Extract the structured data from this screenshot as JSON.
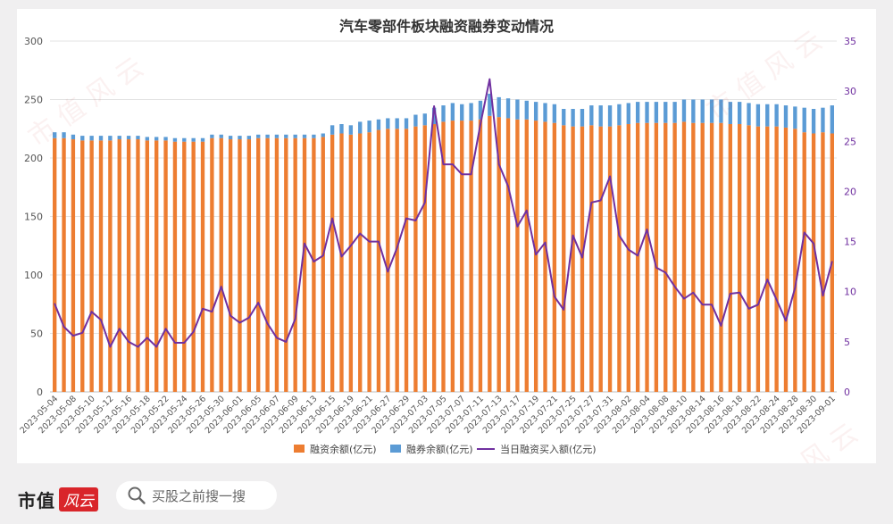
{
  "chart_data": {
    "type": "bar",
    "title": "汽车零部件板块融资融券变动情况",
    "categories": [
      "2023-05-04",
      "2023-05-05",
      "2023-05-08",
      "2023-05-09",
      "2023-05-10",
      "2023-05-11",
      "2023-05-12",
      "2023-05-15",
      "2023-05-16",
      "2023-05-17",
      "2023-05-18",
      "2023-05-19",
      "2023-05-22",
      "2023-05-23",
      "2023-05-24",
      "2023-05-25",
      "2023-05-26",
      "2023-05-29",
      "2023-05-30",
      "2023-05-31",
      "2023-06-01",
      "2023-06-02",
      "2023-06-05",
      "2023-06-06",
      "2023-06-07",
      "2023-06-08",
      "2023-06-09",
      "2023-06-12",
      "2023-06-13",
      "2023-06-14",
      "2023-06-15",
      "2023-06-16",
      "2023-06-19",
      "2023-06-20",
      "2023-06-21",
      "2023-06-26",
      "2023-06-27",
      "2023-06-28",
      "2023-06-29",
      "2023-06-30",
      "2023-07-03",
      "2023-07-04",
      "2023-07-05",
      "2023-07-06",
      "2023-07-07",
      "2023-07-10",
      "2023-07-11",
      "2023-07-12",
      "2023-07-13",
      "2023-07-14",
      "2023-07-17",
      "2023-07-18",
      "2023-07-19",
      "2023-07-20",
      "2023-07-21",
      "2023-07-24",
      "2023-07-25",
      "2023-07-26",
      "2023-07-27",
      "2023-07-28",
      "2023-07-31",
      "2023-08-01",
      "2023-08-02",
      "2023-08-03",
      "2023-08-04",
      "2023-08-07",
      "2023-08-08",
      "2023-08-09",
      "2023-08-10",
      "2023-08-11",
      "2023-08-14",
      "2023-08-15",
      "2023-08-16",
      "2023-08-17",
      "2023-08-18",
      "2023-08-21",
      "2023-08-22",
      "2023-08-23",
      "2023-08-24",
      "2023-08-25",
      "2023-08-28",
      "2023-08-29",
      "2023-08-30",
      "2023-08-31",
      "2023-09-01"
    ],
    "xtick_labels": [
      "2023-05-04",
      "2023-05-08",
      "2023-05-10",
      "2023-05-12",
      "2023-05-16",
      "2023-05-18",
      "2023-05-22",
      "2023-05-24",
      "2023-05-26",
      "2023-05-30",
      "2023-06-01",
      "2023-06-05",
      "2023-06-07",
      "2023-06-09",
      "2023-06-13",
      "2023-06-15",
      "2023-06-19",
      "2023-06-21",
      "2023-06-27",
      "2023-06-29",
      "2023-07-03",
      "2023-07-05",
      "2023-07-07",
      "2023-07-11",
      "2023-07-13",
      "2023-07-17",
      "2023-07-19",
      "2023-07-21",
      "2023-07-25",
      "2023-07-27",
      "2023-07-31",
      "2023-08-02",
      "2023-08-04",
      "2023-08-08",
      "2023-08-10",
      "2023-08-14",
      "2023-08-16",
      "2023-08-18",
      "2023-08-22",
      "2023-08-24",
      "2023-08-28",
      "2023-08-30",
      "2023-09-01"
    ],
    "series": [
      {
        "name": "融资余额(亿元)",
        "kind": "bar",
        "axis": "left",
        "color": "#ed7d31",
        "values": [
          217,
          217,
          216,
          215,
          215,
          215,
          215,
          216,
          216,
          216,
          215,
          215,
          215,
          214,
          214,
          214,
          214,
          217,
          217,
          216,
          216,
          216,
          217,
          217,
          217,
          217,
          217,
          217,
          217,
          218,
          220,
          221,
          220,
          221,
          222,
          224,
          225,
          225,
          225,
          227,
          228,
          229,
          231,
          232,
          232,
          232,
          233,
          236,
          235,
          234,
          233,
          233,
          232,
          231,
          230,
          228,
          227,
          227,
          228,
          227,
          227,
          228,
          229,
          230,
          230,
          230,
          230,
          230,
          231,
          230,
          230,
          230,
          230,
          229,
          229,
          228,
          227,
          227,
          227,
          226,
          225,
          222,
          221,
          222,
          221
        ]
      },
      {
        "name": "融券余额(亿元)",
        "kind": "bar",
        "axis": "left",
        "color": "#5b9bd5",
        "values": [
          5,
          5,
          4,
          4,
          4,
          4,
          4,
          3,
          3,
          3,
          3,
          3,
          3,
          3,
          3,
          3,
          3,
          3,
          3,
          3,
          3,
          3,
          3,
          3,
          3,
          3,
          3,
          3,
          3,
          3,
          8,
          8,
          8,
          10,
          10,
          9,
          9,
          9,
          9,
          10,
          10,
          14,
          14,
          15,
          14,
          15,
          16,
          19,
          17,
          17,
          17,
          16,
          16,
          16,
          16,
          14,
          15,
          15,
          17,
          18,
          18,
          18,
          18,
          18,
          18,
          18,
          18,
          18,
          19,
          20,
          20,
          20,
          20,
          19,
          19,
          19,
          19,
          19,
          19,
          19,
          19,
          21,
          21,
          21,
          24
        ]
      },
      {
        "name": "当日融资买入额(亿元)",
        "kind": "line",
        "axis": "right",
        "color": "#7030a0",
        "values": [
          8.8,
          6.5,
          5.6,
          5.9,
          8.0,
          7.2,
          4.5,
          6.3,
          5.0,
          4.5,
          5.4,
          4.5,
          6.3,
          4.9,
          4.9,
          6.0,
          8.3,
          8.0,
          10.5,
          7.6,
          6.9,
          7.4,
          8.9,
          6.8,
          5.4,
          5.0,
          7.3,
          14.8,
          13.0,
          13.6,
          17.3,
          13.5,
          14.6,
          15.8,
          15.0,
          15.0,
          12.0,
          14.4,
          17.3,
          17.1,
          18.9,
          28.5,
          22.7,
          22.7,
          21.7,
          21.7,
          26.7,
          31.2,
          22.7,
          20.5,
          16.5,
          18.1,
          13.7,
          14.9,
          9.5,
          8.2,
          15.6,
          13.4,
          18.9,
          19.1,
          21.5,
          15.6,
          14.2,
          13.6,
          16.2,
          12.4,
          11.9,
          10.5,
          9.3,
          9.9,
          8.7,
          8.7,
          6.6,
          9.8,
          9.9,
          8.3,
          8.7,
          11.2,
          9.2,
          7.1,
          10.4,
          15.9,
          14.8,
          9.6,
          13.0
        ]
      }
    ],
    "ylim": [
      0,
      300
    ],
    "yticks": [
      0,
      50,
      100,
      150,
      200,
      250,
      300
    ],
    "y2lim": [
      0,
      35
    ],
    "y2ticks": [
      0,
      5,
      10,
      15,
      20,
      25,
      30,
      35
    ],
    "legend_position": "bottom",
    "grid": true
  },
  "footer": {
    "brand_text": "市值",
    "brand_badge": "风云",
    "search_text": "买股之前搜一搜"
  }
}
